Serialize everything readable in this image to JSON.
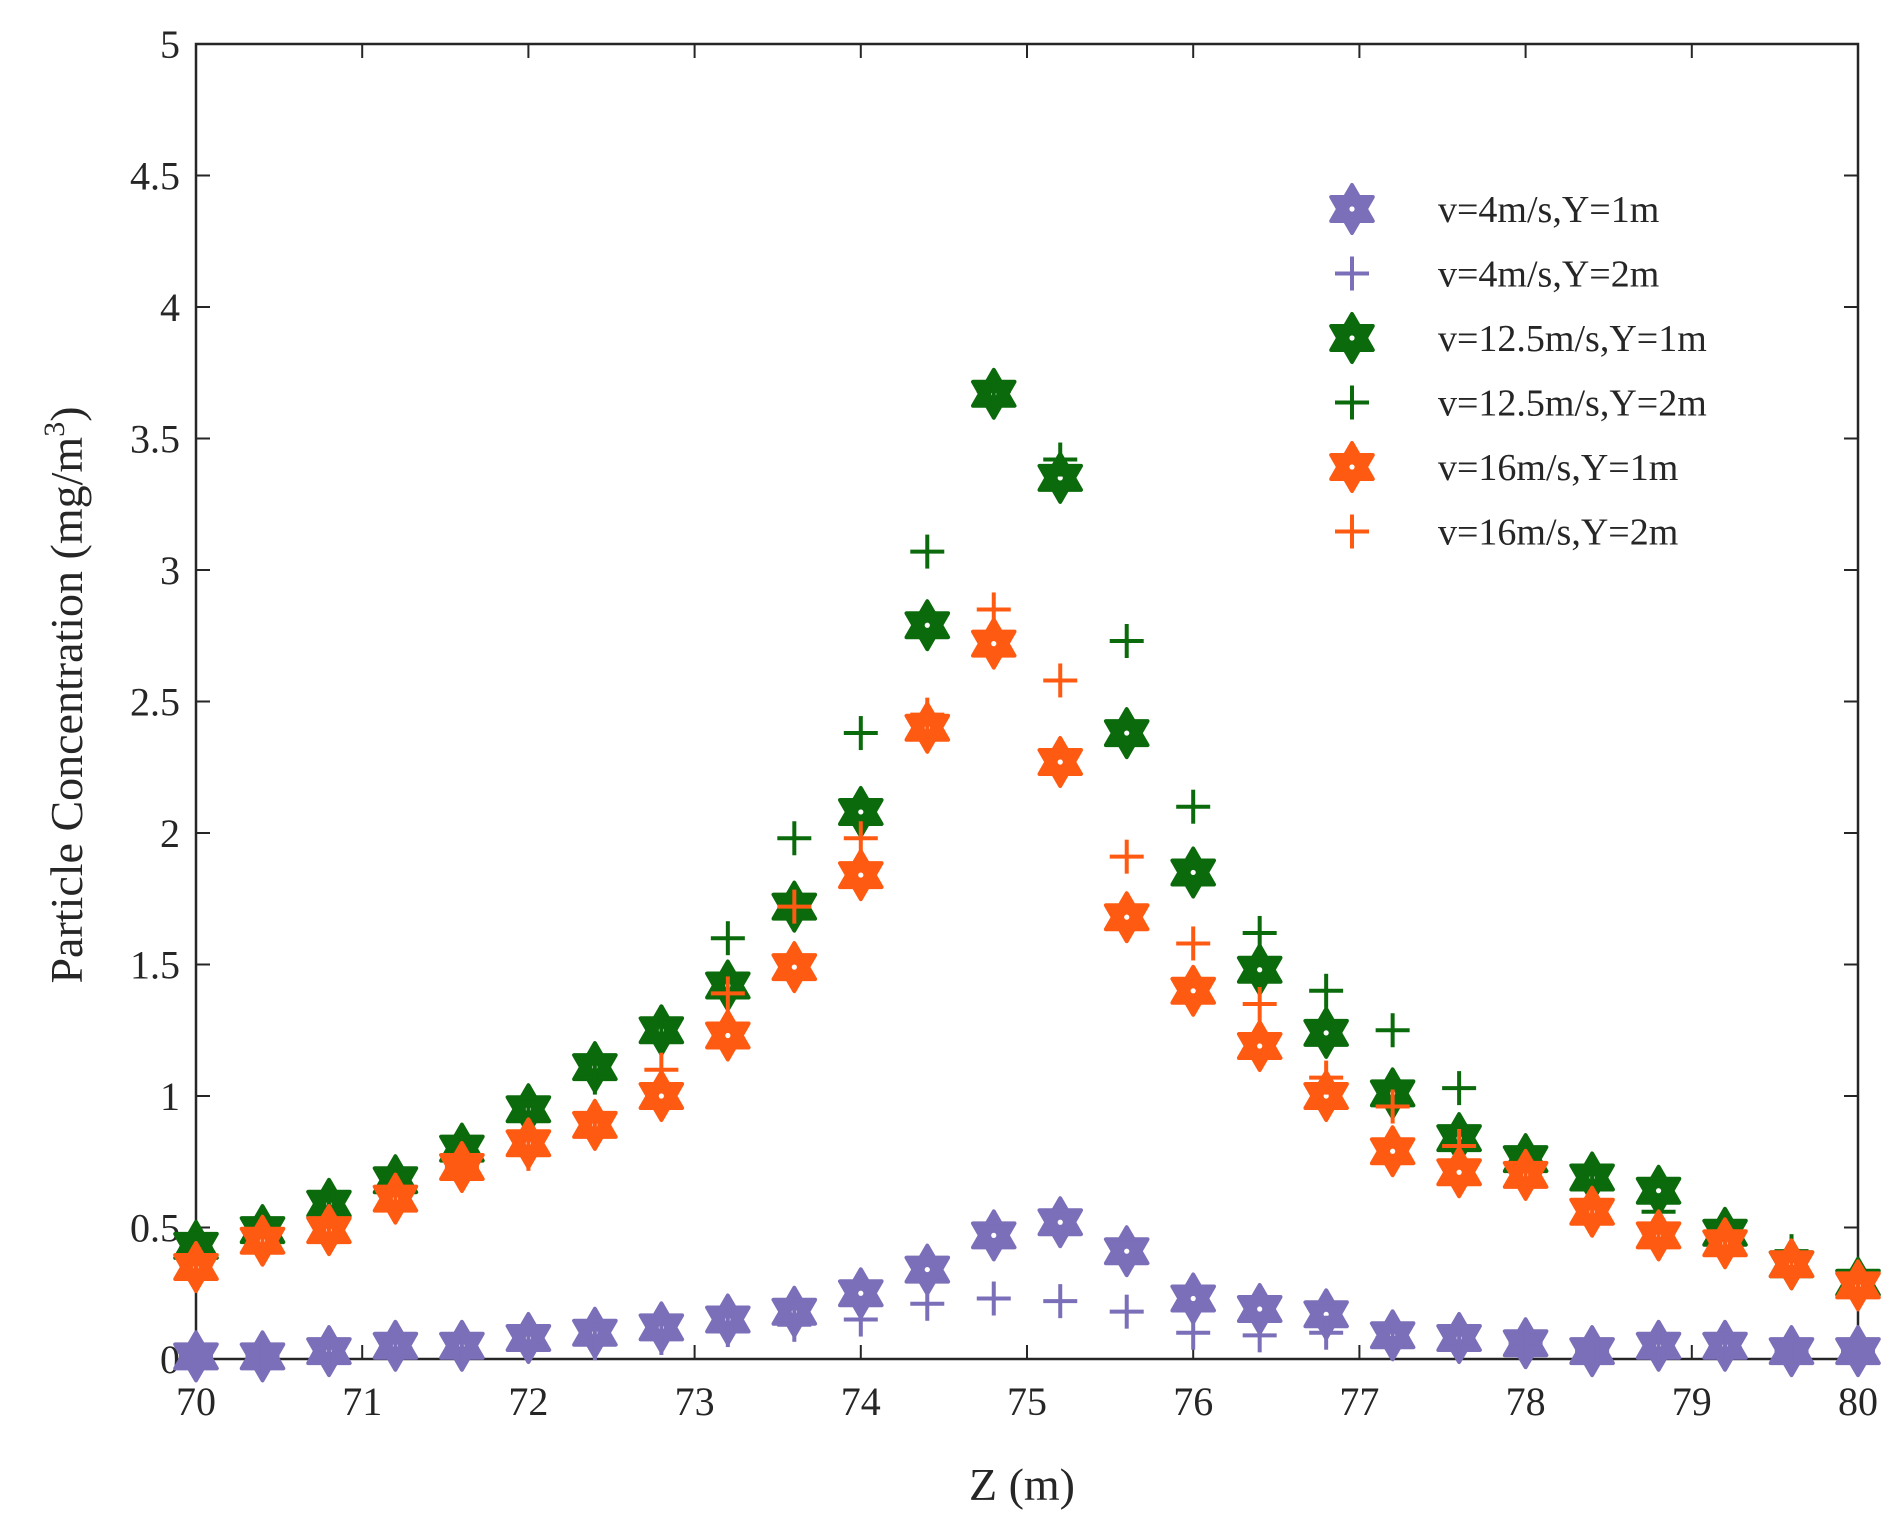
{
  "chart_data": {
    "type": "scatter",
    "title": "",
    "xlabel": "Z (m)",
    "ylabel_main": "Particle Concentration (mg/m",
    "ylabel_sup": "3",
    "ylabel_close": ")",
    "xlim": [
      70,
      80
    ],
    "ylim": [
      0,
      5
    ],
    "xticks": [
      "70",
      "71",
      "72",
      "73",
      "74",
      "75",
      "76",
      "77",
      "78",
      "79",
      "80"
    ],
    "yticks": [
      "0",
      "0.5",
      "1",
      "1.5",
      "2",
      "2.5",
      "3",
      "3.5",
      "4",
      "4.5",
      "5"
    ],
    "legend_position": "top-right",
    "colors": {
      "purple": "#7a6fb8",
      "green": "#0b6a0b",
      "orange": "#ff5a12"
    },
    "x": [
      70,
      70.4,
      70.8,
      71.2,
      71.6,
      72,
      72.4,
      72.8,
      73.2,
      73.6,
      74,
      74.4,
      74.8,
      75.2,
      75.6,
      76,
      76.4,
      76.8,
      77.2,
      77.6,
      78,
      78.4,
      78.8,
      79.2,
      79.6,
      80
    ],
    "series": [
      {
        "name": "v=4m/s,Y=1m",
        "marker": "hexagram",
        "color": "#7a6fb8",
        "values": [
          0.01,
          0.01,
          0.03,
          0.05,
          0.05,
          0.08,
          0.1,
          0.12,
          0.15,
          0.18,
          0.25,
          0.34,
          0.47,
          0.52,
          0.41,
          0.23,
          0.19,
          0.17,
          0.09,
          0.08,
          0.06,
          0.03,
          0.05,
          0.05,
          0.03,
          0.03
        ]
      },
      {
        "name": "v=4m/s,Y=2m",
        "marker": "plus",
        "color": "#7a6fb8",
        "values": [
          0.01,
          0.01,
          0.02,
          0.04,
          0.04,
          0.05,
          0.06,
          0.08,
          0.11,
          0.13,
          0.15,
          0.21,
          0.23,
          0.22,
          0.18,
          0.1,
          0.09,
          0.1,
          0.08,
          0.06,
          0.06,
          0.03,
          0.04,
          0.04,
          0.03,
          0.03
        ]
      },
      {
        "name": "v=12.5m/s,Y=1m",
        "marker": "hexagram",
        "color": "#0b6a0b",
        "values": [
          0.43,
          0.49,
          0.59,
          0.68,
          0.8,
          0.95,
          1.11,
          1.25,
          1.42,
          1.72,
          2.08,
          2.79,
          3.67,
          3.35,
          2.38,
          1.85,
          1.48,
          1.24,
          1.01,
          0.84,
          0.76,
          0.69,
          0.64,
          0.48,
          0.36,
          0.29
        ]
      },
      {
        "name": "v=12.5m/s,Y=2m",
        "marker": "plus",
        "color": "#0b6a0b",
        "values": [
          0.42,
          0.48,
          0.57,
          0.7,
          0.78,
          0.92,
          1.07,
          1.28,
          1.6,
          1.98,
          2.38,
          3.07,
          3.68,
          3.42,
          2.73,
          2.1,
          1.62,
          1.4,
          1.25,
          1.03,
          0.78,
          0.67,
          0.56,
          0.47,
          0.41,
          0.3
        ]
      },
      {
        "name": "v=16m/s,Y=1m",
        "marker": "hexagram",
        "color": "#ff5a12",
        "values": [
          0.35,
          0.45,
          0.49,
          0.61,
          0.73,
          0.82,
          0.89,
          1.0,
          1.23,
          1.49,
          1.84,
          2.4,
          2.72,
          2.27,
          1.68,
          1.4,
          1.19,
          1.0,
          0.79,
          0.71,
          0.7,
          0.56,
          0.47,
          0.44,
          0.36,
          0.28
        ]
      },
      {
        "name": "v=16m/s,Y=2m",
        "marker": "plus",
        "color": "#ff5a12",
        "values": [
          0.36,
          0.43,
          0.52,
          0.64,
          0.73,
          0.78,
          0.92,
          1.1,
          1.39,
          1.72,
          1.98,
          2.45,
          2.85,
          2.58,
          1.91,
          1.58,
          1.35,
          1.07,
          0.96,
          0.81,
          0.68,
          0.58,
          0.48,
          0.42,
          0.35,
          0.29
        ]
      }
    ]
  }
}
